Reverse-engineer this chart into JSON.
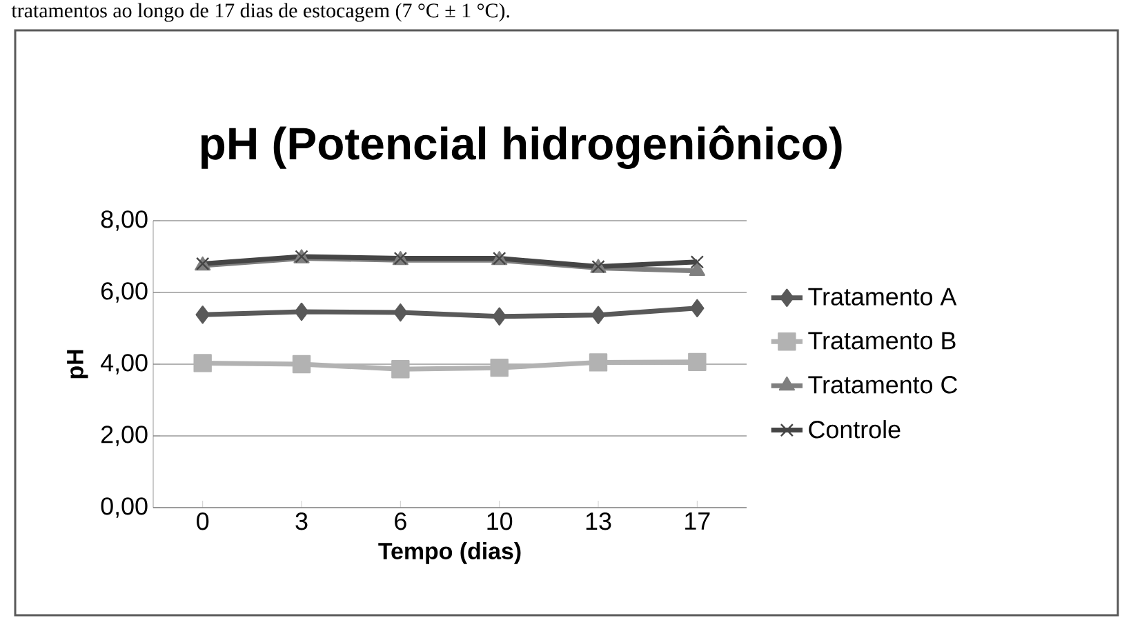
{
  "chart_data": {
    "type": "line",
    "title": "pH (Potencial hidrogeniônico)",
    "xlabel": "Tempo (dias)",
    "ylabel": "pH",
    "annotations": [
      "tratamentos ao longo de 17 dias de estocagem (7 °C ± 1 °C)."
    ],
    "categories": [
      "0",
      "3",
      "6",
      "10",
      "13",
      "17"
    ],
    "series": [
      {
        "name": "Tratamento A",
        "color": "#595959",
        "marker": "diamond",
        "values": [
          5.38,
          5.46,
          5.44,
          5.33,
          5.37,
          5.56
        ]
      },
      {
        "name": "Tratamento B",
        "color": "#b2b2b2",
        "marker": "square",
        "values": [
          4.03,
          4.0,
          3.86,
          3.9,
          4.05,
          4.06
        ]
      },
      {
        "name": "Tratamento C",
        "color": "#7f7f7f",
        "marker": "triangle",
        "values": [
          6.75,
          6.95,
          6.9,
          6.9,
          6.68,
          6.6
        ]
      },
      {
        "name": "Controle",
        "color": "#454545",
        "marker": "cross",
        "values": [
          6.8,
          7.0,
          6.95,
          6.95,
          6.72,
          6.85
        ]
      }
    ],
    "ylim": [
      0,
      8
    ],
    "yticks": [
      {
        "value": 0,
        "label": "0,00"
      },
      {
        "value": 2,
        "label": "2,00"
      },
      {
        "value": 4,
        "label": "4,00"
      },
      {
        "value": 6,
        "label": "6,00"
      },
      {
        "value": 8,
        "label": "8,00"
      }
    ],
    "grid": "y",
    "legend": "right"
  }
}
